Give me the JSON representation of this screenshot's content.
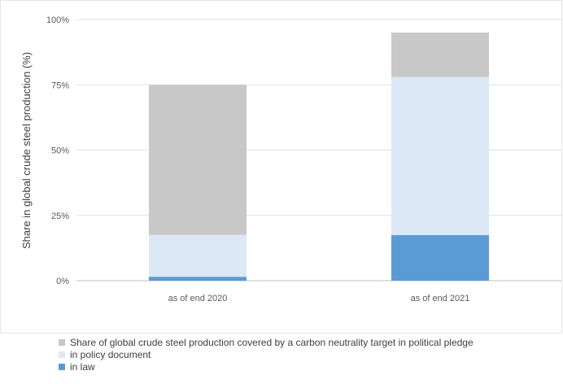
{
  "chart_data": {
    "type": "bar",
    "stacked": true,
    "categories": [
      "as of end 2020",
      "as of end 2021"
    ],
    "series": [
      {
        "name": "in law",
        "color": "#5b9bd5",
        "values": [
          1.5,
          17.5
        ]
      },
      {
        "name": "in policy document",
        "color": "#dce8f5",
        "values": [
          16,
          60.5
        ]
      },
      {
        "name": "Share of global crude steel production covered by a carbon neutrality target in political pledge",
        "color": "#c8c8c8",
        "values": [
          57.5,
          17
        ]
      }
    ],
    "ylabel": "Share in global crude steel production (%)",
    "xlabel": "",
    "ylim": [
      0,
      100
    ],
    "yticks": [
      "0%",
      "25%",
      "50%",
      "75%",
      "100%"
    ],
    "ytick_values": [
      0,
      25,
      50,
      75,
      100
    ],
    "grid": true,
    "legend_position": "bottom"
  }
}
